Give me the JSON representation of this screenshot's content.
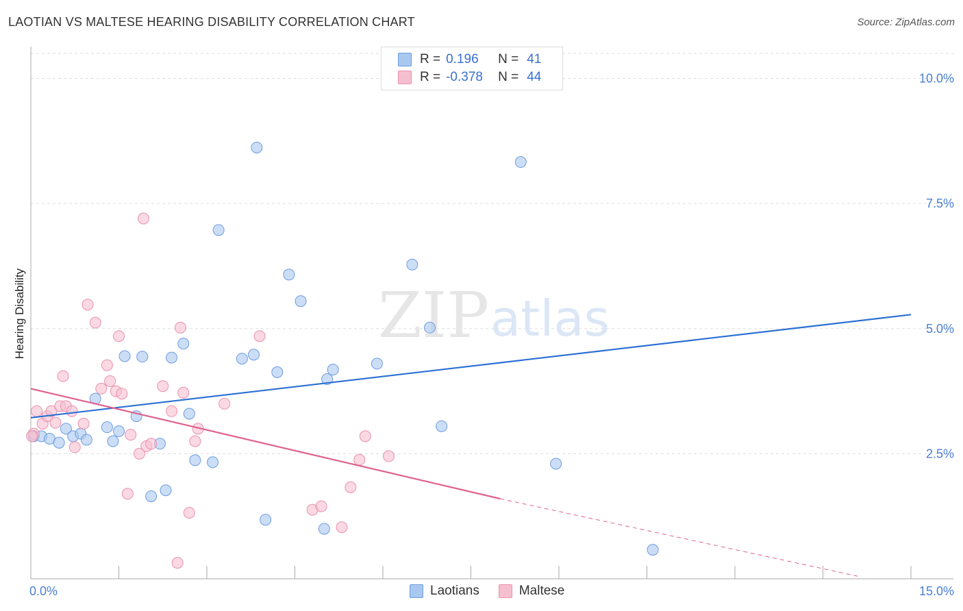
{
  "header": {
    "title": "LAOTIAN VS MALTESE HEARING DISABILITY CORRELATION CHART",
    "source": "Source: ZipAtlas.com"
  },
  "watermark": {
    "zip": "ZIP",
    "atlas": "atlas"
  },
  "colors": {
    "laotian_fill": "#a9c8f0",
    "laotian_stroke": "#6c9be0",
    "laotian_line": "#2b6fd4",
    "maltese_fill": "#f6bfd0",
    "maltese_stroke": "#ea8fae",
    "maltese_line": "#e0608e",
    "tick_label": "#4a7fd0",
    "grid": "#dddddd"
  },
  "legend": {
    "r_label": "R =",
    "n_label": "N =",
    "rows": [
      {
        "r": " 0.196",
        "n": "41"
      },
      {
        "r": "-0.378",
        "n": "44"
      }
    ]
  },
  "chart_data": {
    "type": "scatter",
    "title": "LAOTIAN VS MALTESE HEARING DISABILITY CORRELATION CHART",
    "xlabel": "",
    "ylabel": "Hearing Disability",
    "xlim": [
      0,
      15
    ],
    "ylim": [
      0,
      10.5
    ],
    "x_tick_labels": [
      "0.0%",
      "15.0%"
    ],
    "y_ticks": [
      2.5,
      5.0,
      7.5,
      10.0
    ],
    "y_tick_labels": [
      "2.5%",
      "5.0%",
      "7.5%",
      "10.0%"
    ],
    "grid": true,
    "legend_position": "bottom-center",
    "series": [
      {
        "name": "Laotians",
        "trend": {
          "x": [
            0,
            15
          ],
          "y": [
            3.22,
            5.28
          ]
        },
        "points": [
          {
            "x": 0.05,
            "y": 2.85
          },
          {
            "x": 0.18,
            "y": 2.85
          },
          {
            "x": 0.32,
            "y": 2.8
          },
          {
            "x": 0.48,
            "y": 2.72
          },
          {
            "x": 0.6,
            "y": 3.0
          },
          {
            "x": 0.72,
            "y": 2.85
          },
          {
            "x": 0.85,
            "y": 2.9
          },
          {
            "x": 0.95,
            "y": 2.78
          },
          {
            "x": 1.1,
            "y": 3.6
          },
          {
            "x": 1.3,
            "y": 3.03
          },
          {
            "x": 1.4,
            "y": 2.75
          },
          {
            "x": 1.5,
            "y": 2.95
          },
          {
            "x": 1.6,
            "y": 4.45
          },
          {
            "x": 1.8,
            "y": 3.25
          },
          {
            "x": 1.9,
            "y": 4.44
          },
          {
            "x": 2.05,
            "y": 1.65
          },
          {
            "x": 2.2,
            "y": 2.7
          },
          {
            "x": 2.3,
            "y": 1.77
          },
          {
            "x": 2.4,
            "y": 4.42
          },
          {
            "x": 2.6,
            "y": 4.7
          },
          {
            "x": 2.7,
            "y": 3.3
          },
          {
            "x": 2.8,
            "y": 2.37
          },
          {
            "x": 3.1,
            "y": 2.33
          },
          {
            "x": 3.2,
            "y": 6.97
          },
          {
            "x": 3.6,
            "y": 4.4
          },
          {
            "x": 3.8,
            "y": 4.48
          },
          {
            "x": 3.85,
            "y": 8.62
          },
          {
            "x": 4.0,
            "y": 1.18
          },
          {
            "x": 4.2,
            "y": 4.13
          },
          {
            "x": 4.4,
            "y": 6.08
          },
          {
            "x": 4.6,
            "y": 5.55
          },
          {
            "x": 5.0,
            "y": 1.0
          },
          {
            "x": 5.05,
            "y": 3.99
          },
          {
            "x": 5.15,
            "y": 4.18
          },
          {
            "x": 5.9,
            "y": 4.3
          },
          {
            "x": 6.5,
            "y": 6.28
          },
          {
            "x": 6.8,
            "y": 5.02
          },
          {
            "x": 7.0,
            "y": 3.05
          },
          {
            "x": 8.35,
            "y": 8.33
          },
          {
            "x": 8.95,
            "y": 2.3
          },
          {
            "x": 10.6,
            "y": 0.58
          }
        ]
      },
      {
        "name": "Maltese",
        "trend": {
          "x": [
            0,
            8.0,
            14.1
          ],
          "y": [
            3.8,
            1.6,
            0.05
          ]
        },
        "points": [
          {
            "x": 0.05,
            "y": 2.9
          },
          {
            "x": 0.1,
            "y": 3.35
          },
          {
            "x": 0.2,
            "y": 3.1
          },
          {
            "x": 0.28,
            "y": 3.25
          },
          {
            "x": 0.35,
            "y": 3.35
          },
          {
            "x": 0.42,
            "y": 3.12
          },
          {
            "x": 0.5,
            "y": 3.45
          },
          {
            "x": 0.55,
            "y": 4.05
          },
          {
            "x": 0.6,
            "y": 3.45
          },
          {
            "x": 0.7,
            "y": 3.35
          },
          {
            "x": 0.75,
            "y": 2.63
          },
          {
            "x": 0.9,
            "y": 3.1
          },
          {
            "x": 0.97,
            "y": 5.48
          },
          {
            "x": 1.1,
            "y": 5.12
          },
          {
            "x": 1.2,
            "y": 3.8
          },
          {
            "x": 1.3,
            "y": 4.27
          },
          {
            "x": 1.35,
            "y": 3.95
          },
          {
            "x": 1.45,
            "y": 3.75
          },
          {
            "x": 1.5,
            "y": 4.85
          },
          {
            "x": 1.55,
            "y": 3.7
          },
          {
            "x": 1.65,
            "y": 1.7
          },
          {
            "x": 1.7,
            "y": 2.88
          },
          {
            "x": 1.85,
            "y": 2.5
          },
          {
            "x": 1.92,
            "y": 7.2
          },
          {
            "x": 1.97,
            "y": 2.65
          },
          {
            "x": 2.05,
            "y": 2.7
          },
          {
            "x": 2.25,
            "y": 3.85
          },
          {
            "x": 2.4,
            "y": 3.35
          },
          {
            "x": 2.5,
            "y": 0.32
          },
          {
            "x": 2.55,
            "y": 5.02
          },
          {
            "x": 2.6,
            "y": 3.72
          },
          {
            "x": 2.7,
            "y": 1.32
          },
          {
            "x": 2.8,
            "y": 2.75
          },
          {
            "x": 2.85,
            "y": 3.0
          },
          {
            "x": 3.3,
            "y": 3.5
          },
          {
            "x": 3.9,
            "y": 4.85
          },
          {
            "x": 4.8,
            "y": 1.38
          },
          {
            "x": 4.95,
            "y": 1.45
          },
          {
            "x": 5.3,
            "y": 1.03
          },
          {
            "x": 5.45,
            "y": 1.83
          },
          {
            "x": 5.6,
            "y": 2.38
          },
          {
            "x": 5.7,
            "y": 2.85
          },
          {
            "x": 6.1,
            "y": 2.45
          },
          {
            "x": 0.02,
            "y": 2.85
          }
        ]
      }
    ]
  },
  "bottom_legend": {
    "items": [
      "Laotians",
      "Maltese"
    ]
  }
}
